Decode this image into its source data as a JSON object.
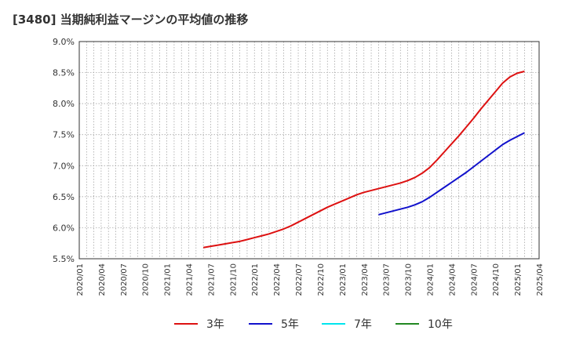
{
  "chart_data": {
    "type": "line",
    "title": "[3480]  当期純利益マージンの平均値の推移",
    "xlabel": "",
    "ylabel": "",
    "ylim": [
      5.5,
      9.0
    ],
    "y_ticks": [
      "9.0%",
      "8.5%",
      "8.0%",
      "7.5%",
      "7.0%",
      "6.5%",
      "6.0%",
      "5.5%"
    ],
    "x_ticks": [
      "2020/01",
      "2020/04",
      "2020/07",
      "2020/10",
      "2021/01",
      "2021/04",
      "2021/07",
      "2021/10",
      "2022/01",
      "2022/04",
      "2022/07",
      "2022/10",
      "2023/01",
      "2023/04",
      "2023/07",
      "2023/10",
      "2024/01",
      "2024/04",
      "2024/07",
      "2024/10",
      "2025/01",
      "2025/04"
    ],
    "grid": true,
    "legend_position": "bottom",
    "series": [
      {
        "name": "3年",
        "color": "#dd1111",
        "points": [
          [
            "2021/06",
            5.68
          ],
          [
            "2021/07",
            5.7
          ],
          [
            "2021/08",
            5.72
          ],
          [
            "2021/09",
            5.74
          ],
          [
            "2021/10",
            5.76
          ],
          [
            "2021/11",
            5.78
          ],
          [
            "2021/12",
            5.81
          ],
          [
            "2022/01",
            5.84
          ],
          [
            "2022/02",
            5.87
          ],
          [
            "2022/03",
            5.9
          ],
          [
            "2022/04",
            5.94
          ],
          [
            "2022/05",
            5.98
          ],
          [
            "2022/06",
            6.03
          ],
          [
            "2022/07",
            6.09
          ],
          [
            "2022/08",
            6.15
          ],
          [
            "2022/09",
            6.21
          ],
          [
            "2022/10",
            6.27
          ],
          [
            "2022/11",
            6.33
          ],
          [
            "2022/12",
            6.38
          ],
          [
            "2023/01",
            6.43
          ],
          [
            "2023/02",
            6.48
          ],
          [
            "2023/03",
            6.53
          ],
          [
            "2023/04",
            6.57
          ],
          [
            "2023/05",
            6.6
          ],
          [
            "2023/06",
            6.63
          ],
          [
            "2023/07",
            6.66
          ],
          [
            "2023/08",
            6.69
          ],
          [
            "2023/09",
            6.72
          ],
          [
            "2023/10",
            6.76
          ],
          [
            "2023/11",
            6.81
          ],
          [
            "2023/12",
            6.88
          ],
          [
            "2024/01",
            6.97
          ],
          [
            "2024/02",
            7.09
          ],
          [
            "2024/03",
            7.22
          ],
          [
            "2024/04",
            7.35
          ],
          [
            "2024/05",
            7.48
          ],
          [
            "2024/06",
            7.62
          ],
          [
            "2024/07",
            7.76
          ],
          [
            "2024/08",
            7.91
          ],
          [
            "2024/09",
            8.05
          ],
          [
            "2024/10",
            8.19
          ],
          [
            "2024/11",
            8.33
          ],
          [
            "2024/12",
            8.43
          ],
          [
            "2025/01",
            8.49
          ],
          [
            "2025/02",
            8.52
          ]
        ]
      },
      {
        "name": "5年",
        "color": "#1111cc",
        "points": [
          [
            "2023/06",
            6.21
          ],
          [
            "2023/07",
            6.24
          ],
          [
            "2023/08",
            6.27
          ],
          [
            "2023/09",
            6.3
          ],
          [
            "2023/10",
            6.33
          ],
          [
            "2023/11",
            6.37
          ],
          [
            "2023/12",
            6.42
          ],
          [
            "2024/01",
            6.49
          ],
          [
            "2024/02",
            6.57
          ],
          [
            "2024/03",
            6.65
          ],
          [
            "2024/04",
            6.73
          ],
          [
            "2024/05",
            6.81
          ],
          [
            "2024/06",
            6.89
          ],
          [
            "2024/07",
            6.98
          ],
          [
            "2024/08",
            7.07
          ],
          [
            "2024/09",
            7.16
          ],
          [
            "2024/10",
            7.25
          ],
          [
            "2024/11",
            7.34
          ],
          [
            "2024/12",
            7.41
          ],
          [
            "2025/01",
            7.47
          ],
          [
            "2025/02",
            7.53
          ]
        ]
      },
      {
        "name": "7年",
        "color": "#00e5ee",
        "points": []
      },
      {
        "name": "10年",
        "color": "#228822",
        "points": []
      }
    ]
  }
}
